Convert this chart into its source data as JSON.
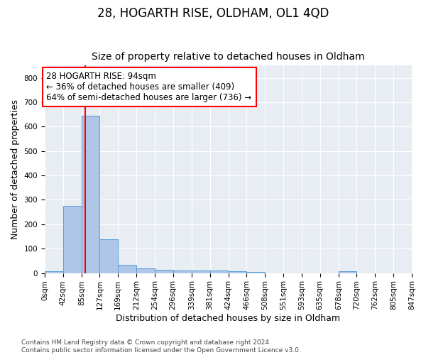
{
  "title": "28, HOGARTH RISE, OLDHAM, OL1 4QD",
  "subtitle": "Size of property relative to detached houses in Oldham",
  "xlabel": "Distribution of detached houses by size in Oldham",
  "ylabel": "Number of detached properties",
  "bin_edges": [
    0,
    42,
    85,
    127,
    169,
    212,
    254,
    296,
    339,
    381,
    424,
    466,
    508,
    551,
    593,
    635,
    678,
    720,
    762,
    805,
    847
  ],
  "bar_heights": [
    8,
    275,
    645,
    138,
    35,
    18,
    12,
    10,
    10,
    10,
    8,
    5,
    0,
    0,
    0,
    0,
    7,
    0,
    0,
    0
  ],
  "bar_color": "#aec6e8",
  "bar_edge_color": "#5a9fd4",
  "red_line_x": 94,
  "annotation_text": "28 HOGARTH RISE: 94sqm\n← 36% of detached houses are smaller (409)\n64% of semi-detached houses are larger (736) →",
  "annotation_box_color": "white",
  "annotation_box_edge_color": "red",
  "ylim": [
    0,
    850
  ],
  "yticks": [
    0,
    100,
    200,
    300,
    400,
    500,
    600,
    700,
    800
  ],
  "background_color": "#e8edf4",
  "grid_color": "white",
  "footer_text": "Contains HM Land Registry data © Crown copyright and database right 2024.\nContains public sector information licensed under the Open Government Licence v3.0.",
  "title_fontsize": 12,
  "subtitle_fontsize": 10,
  "xlabel_fontsize": 9,
  "ylabel_fontsize": 9,
  "tick_label_fontsize": 7.5,
  "annotation_fontsize": 8.5
}
